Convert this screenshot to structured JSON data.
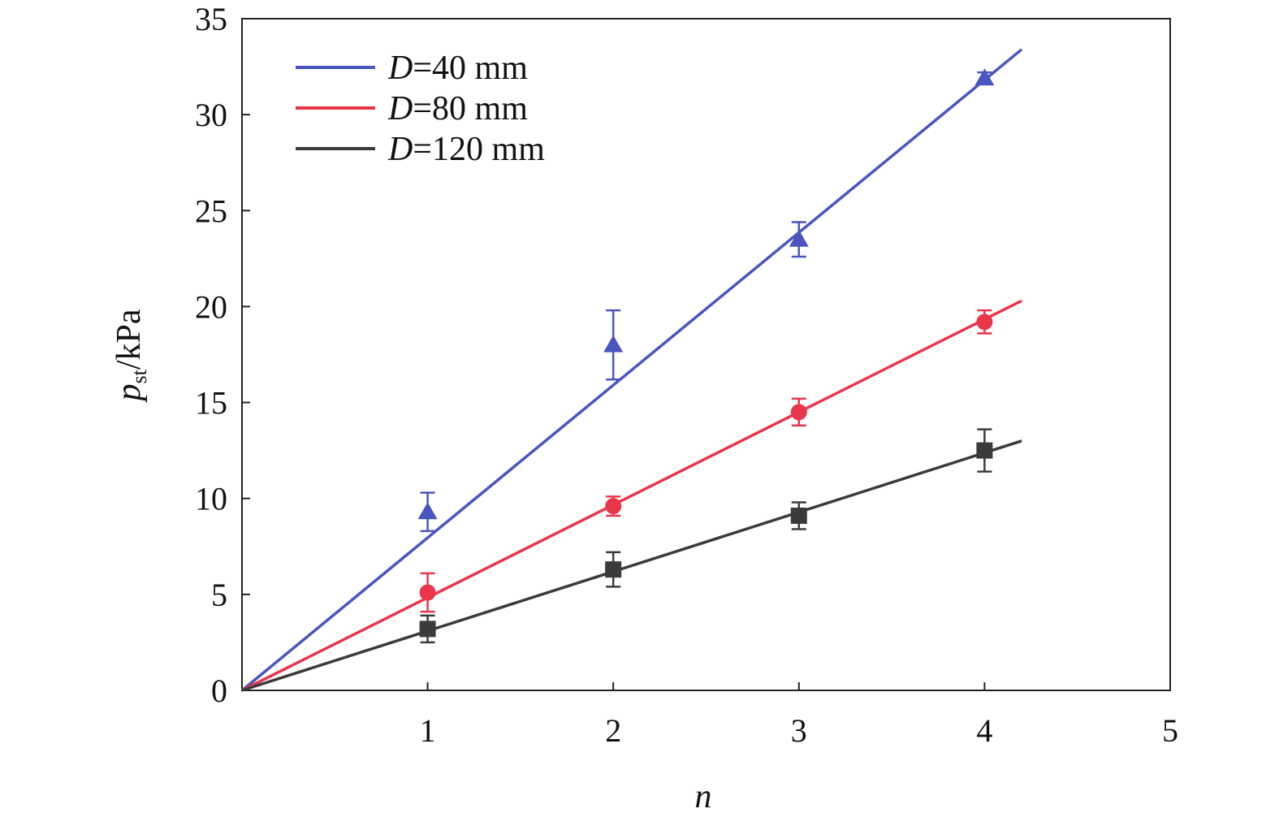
{
  "chart_data": {
    "type": "scatter",
    "xlabel": "n",
    "ylabel": {
      "main": "p",
      "sub": "st",
      "unit": "/kPa"
    },
    "xlim": [
      0,
      5
    ],
    "ylim": [
      0,
      35
    ],
    "x_ticks": [
      "1",
      "2",
      "3",
      "4",
      "5"
    ],
    "y_ticks": [
      "0",
      "5",
      "10",
      "15",
      "20",
      "25",
      "30",
      "35"
    ],
    "grid": false,
    "legend_position": "top-left",
    "series": [
      {
        "name_var": "D",
        "name_rest": "=40 mm",
        "color": "#4a55c0",
        "marker": "triangle",
        "x": [
          1,
          2,
          3,
          4
        ],
        "y": [
          9.3,
          18.0,
          23.5,
          31.9
        ],
        "err": [
          1.0,
          1.8,
          0.9,
          0.3
        ],
        "fit": {
          "x": [
            0,
            4.2
          ],
          "y": [
            0,
            33.4
          ]
        }
      },
      {
        "name_var": "D",
        "name_rest": "=80 mm",
        "color": "#e8374a",
        "marker": "circle",
        "x": [
          1,
          2,
          3,
          4
        ],
        "y": [
          5.1,
          9.6,
          14.5,
          19.2
        ],
        "err": [
          1.0,
          0.5,
          0.7,
          0.6
        ],
        "fit": {
          "x": [
            0,
            4.2
          ],
          "y": [
            0,
            20.3
          ]
        }
      },
      {
        "name_var": "D",
        "name_rest": "=120 mm",
        "color": "#3b3b3b",
        "marker": "square",
        "x": [
          1,
          2,
          3,
          4
        ],
        "y": [
          3.2,
          6.3,
          9.1,
          12.5
        ],
        "err": [
          0.7,
          0.9,
          0.7,
          1.1
        ],
        "fit": {
          "x": [
            0,
            4.2
          ],
          "y": [
            0,
            13.0
          ]
        }
      }
    ]
  }
}
